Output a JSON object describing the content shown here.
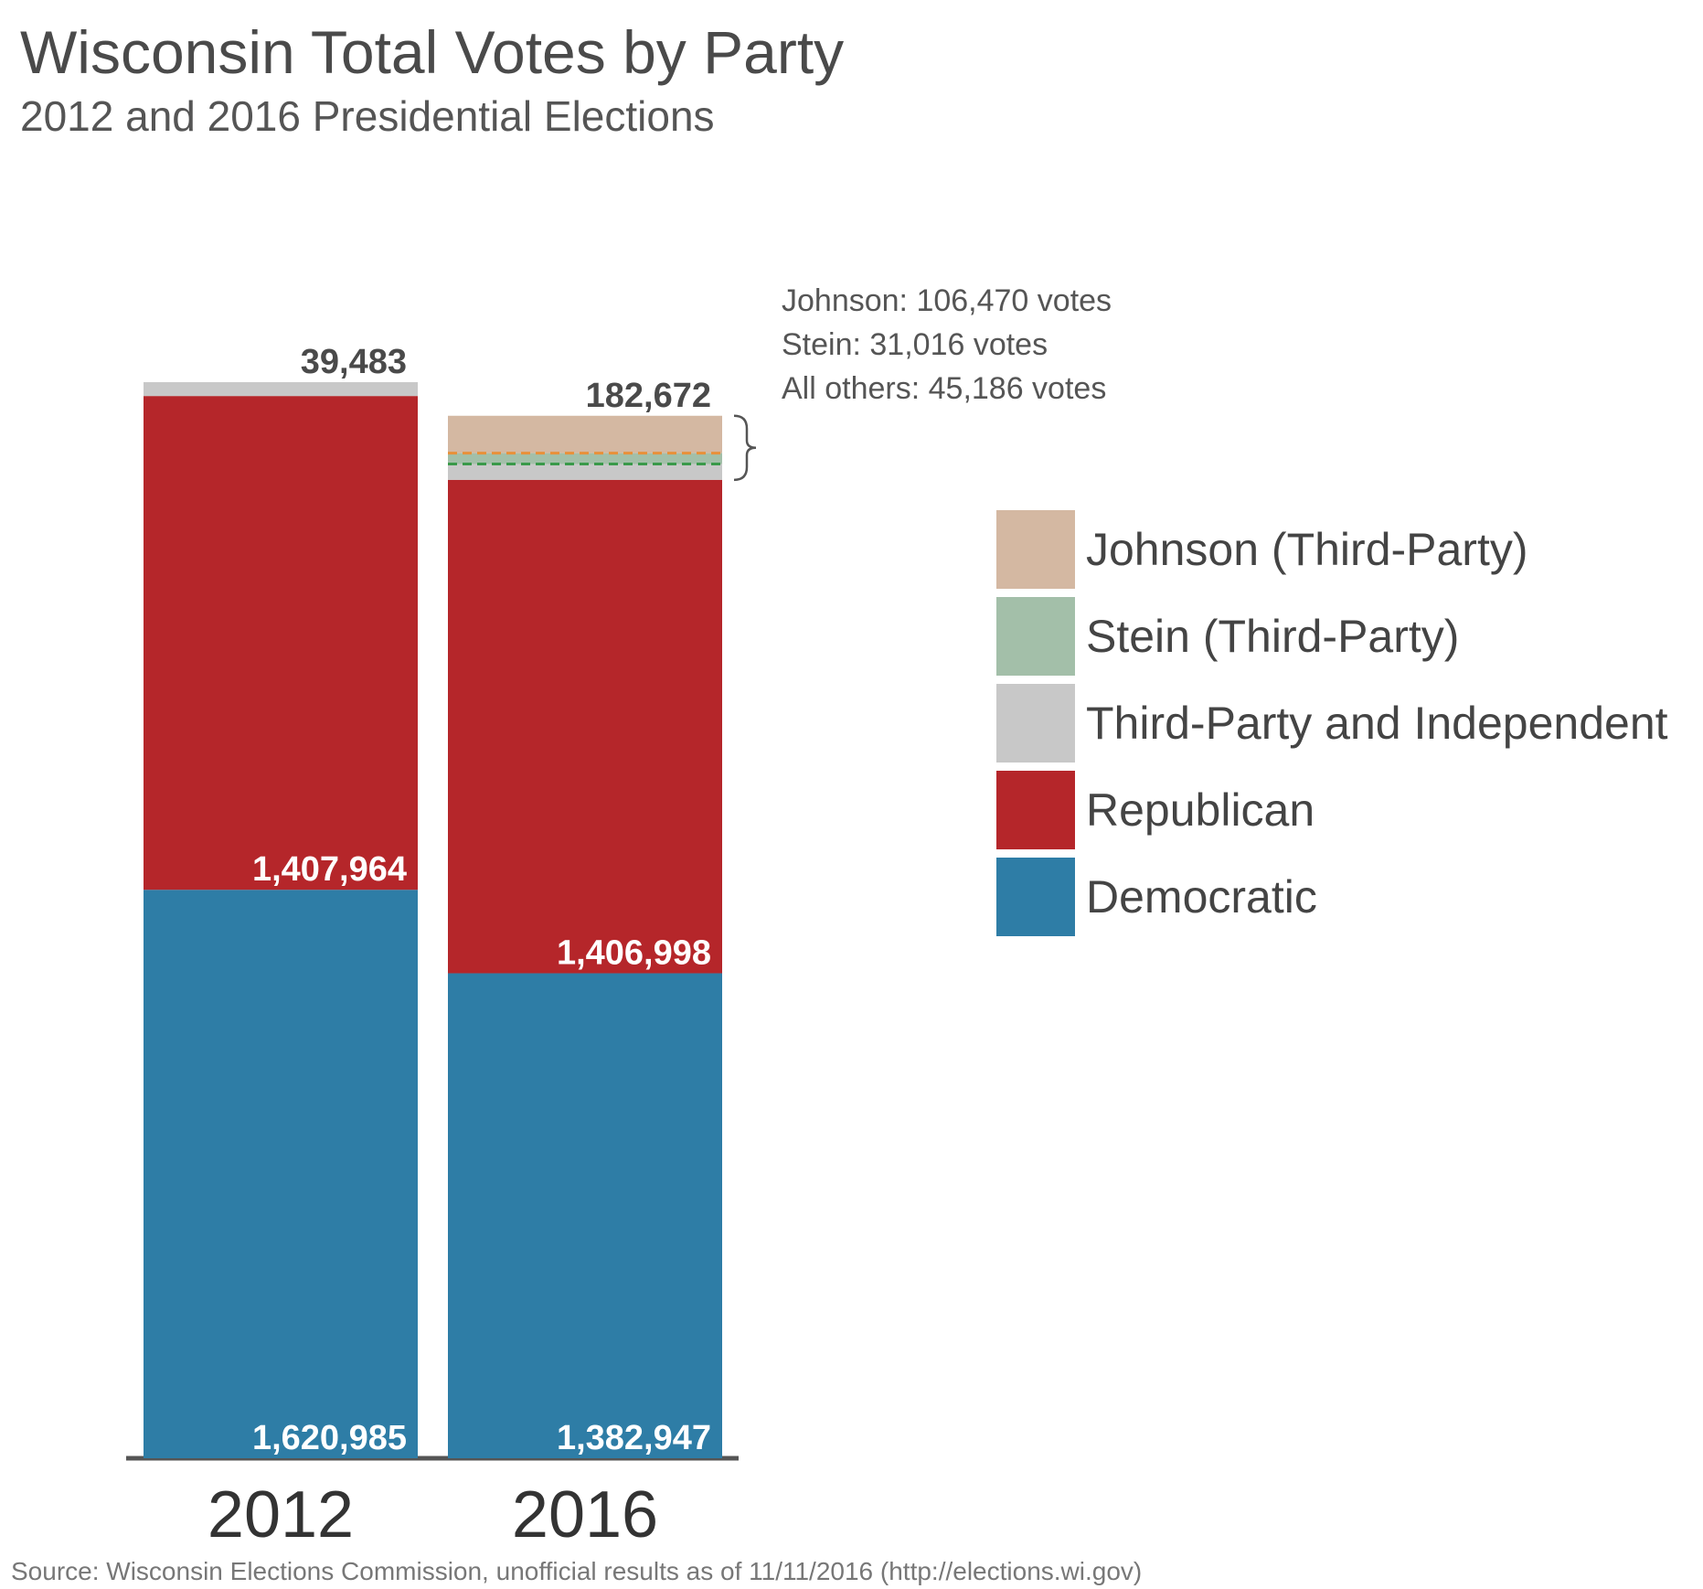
{
  "chart_data": {
    "type": "bar",
    "stacked": true,
    "title": "Wisconsin Total Votes by Party",
    "subtitle": "2012 and 2016 Presidential Elections",
    "categories": [
      "2012",
      "2016"
    ],
    "series": [
      {
        "name": "Democratic",
        "color": "#2e7da6",
        "values": [
          1620985,
          1382947
        ],
        "labels": [
          "1,620,985",
          "1,382,947"
        ]
      },
      {
        "name": "Republican",
        "color": "#b5262a",
        "values": [
          1407964,
          1406998
        ],
        "labels": [
          "1,407,964",
          "1,406,998"
        ]
      },
      {
        "name": "Third-Party and Independent",
        "color": "#c8c8c8",
        "values": [
          39483,
          45186
        ]
      },
      {
        "name": "Stein (Third-Party)",
        "color": "#a3bfa9",
        "values": [
          0,
          31016
        ]
      },
      {
        "name": "Johnson (Third-Party)",
        "color": "#d4b8a2",
        "values": [
          0,
          106470
        ]
      }
    ],
    "third_party_totals": [
      "39,483",
      "182,672"
    ],
    "annotation_lines": [
      "Johnson: 106,470 votes",
      "Stein: 31,016 votes",
      "All others: 45,186 votes"
    ],
    "legend_order": [
      "Johnson (Third-Party)",
      "Stein (Third-Party)",
      "Third-Party and Independent",
      "Republican",
      "Democratic"
    ],
    "legend_position": "right",
    "dashed_line_colors": [
      "#e8913a",
      "#3a9a4a"
    ],
    "grid": false,
    "source": "Source: Wisconsin Elections Commission, unofficial results as of 11/11/2016 (http://elections.wi.gov)"
  }
}
